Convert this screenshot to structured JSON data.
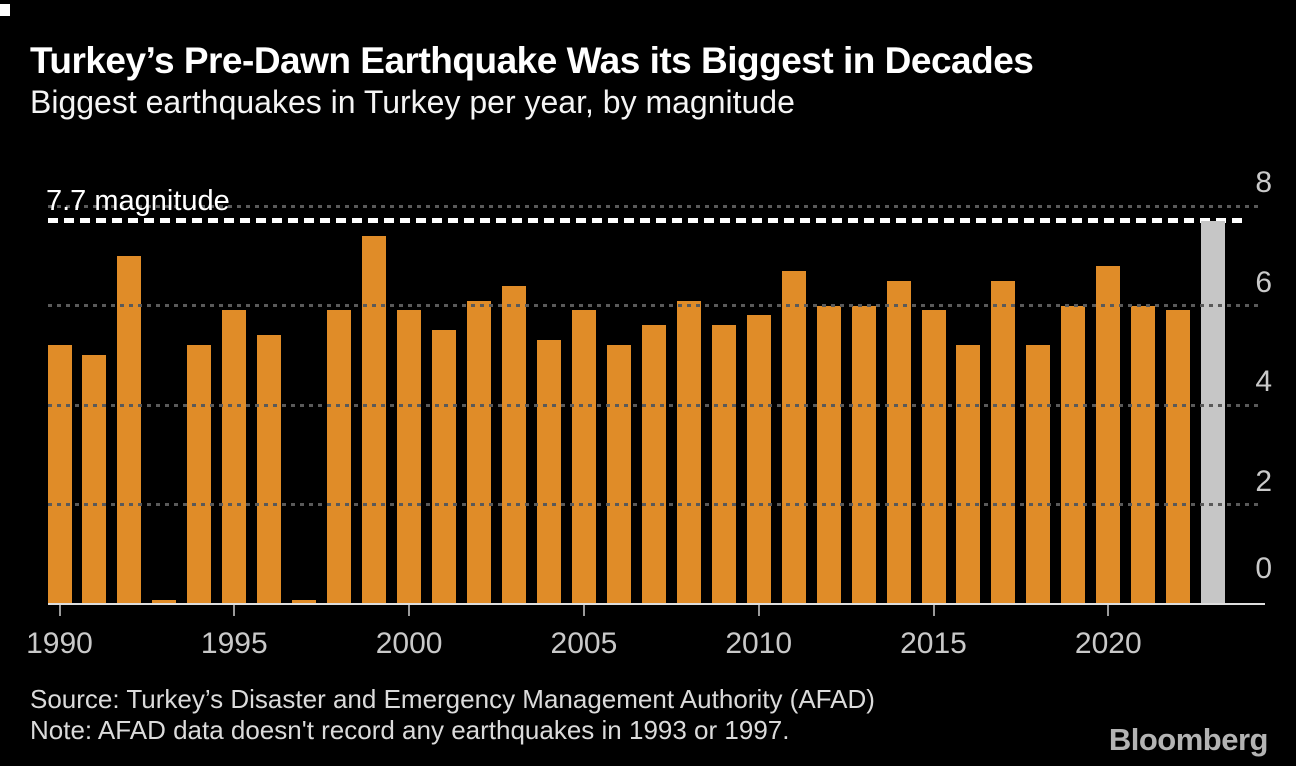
{
  "header": {
    "title": "Turkey’s Pre-Dawn Earthquake Was its Biggest in Decades",
    "subtitle": "Biggest earthquakes in Turkey per year, by magnitude"
  },
  "chart_data": {
    "type": "bar",
    "title": "Turkey’s Pre-Dawn Earthquake Was its Biggest in Decades",
    "subtitle": "Biggest earthquakes in Turkey per year, by magnitude",
    "x": [
      1990,
      1991,
      1992,
      1993,
      1994,
      1995,
      1996,
      1997,
      1998,
      1999,
      2000,
      2001,
      2002,
      2003,
      2004,
      2005,
      2006,
      2007,
      2008,
      2009,
      2010,
      2011,
      2012,
      2013,
      2014,
      2015,
      2016,
      2017,
      2018,
      2019,
      2020,
      2021,
      2022,
      2023
    ],
    "values": [
      5.2,
      5.0,
      7.0,
      null,
      5.2,
      5.9,
      5.4,
      null,
      5.9,
      7.4,
      5.9,
      5.5,
      6.1,
      6.4,
      5.3,
      5.9,
      5.2,
      5.6,
      6.1,
      5.6,
      5.8,
      6.7,
      6.0,
      6.0,
      6.5,
      5.9,
      5.2,
      6.5,
      5.2,
      6.0,
      6.8,
      6.0,
      5.9,
      7.7
    ],
    "no_data_years": [
      1993,
      1997
    ],
    "highlight_year": 2023,
    "annotation": {
      "label": "7.7 magnitude",
      "value": 7.7
    },
    "ylim": [
      0,
      8
    ],
    "yticks": [
      0,
      2,
      4,
      6,
      8
    ],
    "xticks": [
      1990,
      1995,
      2000,
      2005,
      2010,
      2015,
      2020
    ],
    "ylabel": "",
    "xlabel": "",
    "grid": "horizontal-dotted",
    "bar_color": "#e08c28",
    "highlight_color": "#c6c6c6",
    "annotation_line_color": "#ffffff",
    "gridline_color": "#5a5a5a",
    "background_color": "#000000"
  },
  "footer": {
    "source": "Source: Turkey’s Disaster and Emergency Management Authority (AFAD)",
    "note": "Note: AFAD data doesn't record any earthquakes in 1993 or 1997."
  },
  "brand": {
    "logo": "Bloomberg"
  }
}
